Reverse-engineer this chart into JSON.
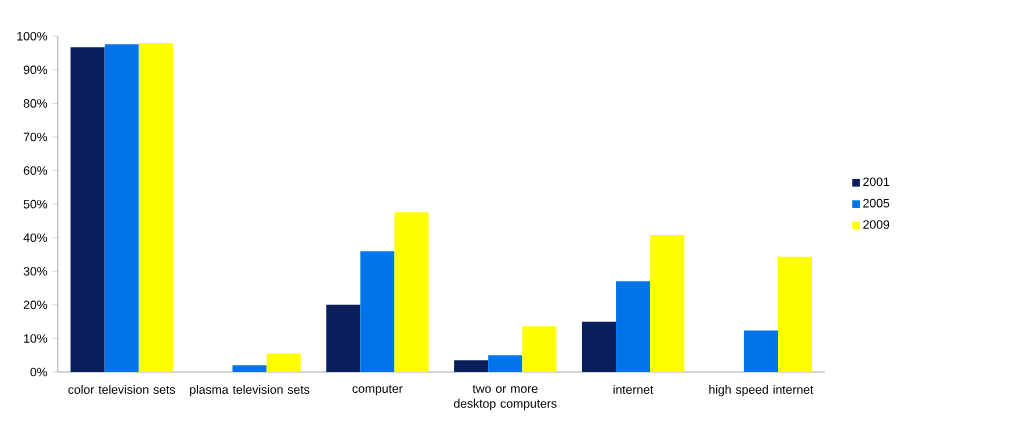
{
  "chart_data": {
    "type": "bar",
    "categories": [
      "color television sets",
      "plasma television sets",
      "computer",
      "two or more desktop computers",
      "internet",
      "high speed internet"
    ],
    "series": [
      {
        "name": "2001",
        "color": "#0a1f5c",
        "values": [
          96.7,
          null,
          20,
          3.5,
          15,
          null
        ]
      },
      {
        "name": "2005",
        "color": "#0074e8",
        "values": [
          97.6,
          2,
          36,
          5,
          27,
          12.4
        ]
      },
      {
        "name": "2009",
        "color": "#ffff00",
        "values": [
          98,
          5.5,
          47.6,
          13.6,
          40.8,
          34.3
        ]
      }
    ],
    "ylim": [
      0,
      100
    ],
    "yticks": [
      {
        "value": 0,
        "label": "0%"
      },
      {
        "value": 10,
        "label": "10%"
      },
      {
        "value": 20,
        "label": "20%"
      },
      {
        "value": 30,
        "label": "30%"
      },
      {
        "value": 40,
        "label": "40%"
      },
      {
        "value": 50,
        "label": "50%"
      },
      {
        "value": 60,
        "label": "60%"
      },
      {
        "value": 70,
        "label": "70%"
      },
      {
        "value": 80,
        "label": "80%"
      },
      {
        "value": 90,
        "label": "90%"
      },
      {
        "value": 100,
        "label": "100%"
      }
    ],
    "grid": false,
    "legend": "right"
  }
}
